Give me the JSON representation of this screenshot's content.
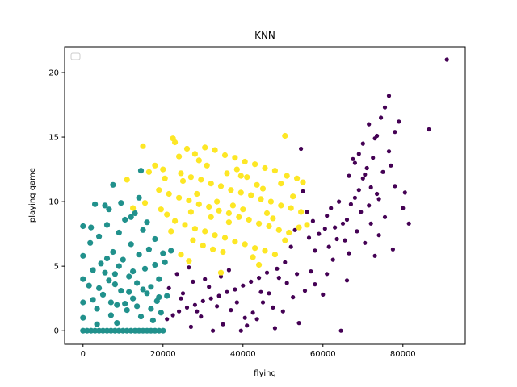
{
  "chart_data": {
    "type": "scatter",
    "title": "KNN",
    "xlabel": "flying",
    "ylabel": "playing game",
    "xlim": [
      -4600,
      95600
    ],
    "ylim": [
      -1.05,
      22.0
    ],
    "xticks": [
      0,
      20000,
      40000,
      60000,
      80000
    ],
    "yticks": [
      0,
      5,
      10,
      15,
      20
    ],
    "grid": false,
    "legend": "top-left (empty)",
    "series": [
      {
        "color": "#440154",
        "points": [
          [
            91000,
            21.0
          ],
          [
            86500,
            15.6
          ],
          [
            76500,
            18.2
          ],
          [
            75500,
            17.3
          ],
          [
            74500,
            16.5
          ],
          [
            79000,
            16.2
          ],
          [
            71500,
            16.0
          ],
          [
            78000,
            15.4
          ],
          [
            73000,
            14.9
          ],
          [
            69000,
            13.7
          ],
          [
            72500,
            13.4
          ],
          [
            67500,
            13.3
          ],
          [
            71000,
            12.6
          ],
          [
            75000,
            12.3
          ],
          [
            66500,
            12.0
          ],
          [
            70000,
            11.8
          ],
          [
            78000,
            11.2
          ],
          [
            73500,
            10.6
          ],
          [
            68000,
            10.3
          ],
          [
            64000,
            10.0
          ],
          [
            71500,
            9.7
          ],
          [
            62000,
            9.5
          ],
          [
            80000,
            9.5
          ],
          [
            69500,
            9.2
          ],
          [
            61000,
            8.9
          ],
          [
            75500,
            8.8
          ],
          [
            66000,
            8.6
          ],
          [
            57500,
            8.5
          ],
          [
            72000,
            8.3
          ],
          [
            81500,
            8.3
          ],
          [
            63000,
            8.0
          ],
          [
            68500,
            7.7
          ],
          [
            59000,
            7.5
          ],
          [
            74000,
            7.4
          ],
          [
            56500,
            7.2
          ],
          [
            65500,
            7.0
          ],
          [
            70500,
            6.8
          ],
          [
            61500,
            6.5
          ],
          [
            77500,
            6.3
          ],
          [
            58000,
            6.2
          ],
          [
            66500,
            6.0
          ],
          [
            73000,
            5.8
          ],
          [
            54500,
            14.1
          ],
          [
            55000,
            10.8
          ],
          [
            56000,
            9.2
          ],
          [
            53000,
            7.8
          ],
          [
            52000,
            6.5
          ],
          [
            50500,
            5.3
          ],
          [
            48500,
            4.8
          ],
          [
            46000,
            4.5
          ],
          [
            44000,
            4.1
          ],
          [
            42000,
            3.8
          ],
          [
            40000,
            3.5
          ],
          [
            38000,
            3.2
          ],
          [
            36000,
            3.0
          ],
          [
            34000,
            2.7
          ],
          [
            32000,
            2.5
          ],
          [
            30000,
            2.3
          ],
          [
            28000,
            2.0
          ],
          [
            26000,
            1.8
          ],
          [
            24000,
            1.5
          ],
          [
            22500,
            1.2
          ],
          [
            21000,
            0.9
          ],
          [
            45000,
            2.2
          ],
          [
            47500,
            1.8
          ],
          [
            50000,
            1.5
          ],
          [
            52500,
            2.6
          ],
          [
            55500,
            3.1
          ],
          [
            58000,
            3.6
          ],
          [
            60000,
            2.8
          ],
          [
            37000,
            1.6
          ],
          [
            39500,
            0.0
          ],
          [
            41000,
            0.4
          ],
          [
            43500,
            0.9
          ],
          [
            35000,
            0.5
          ],
          [
            33500,
            1.9
          ],
          [
            29500,
            1.1
          ],
          [
            27000,
            0.3
          ],
          [
            25000,
            2.9
          ],
          [
            31500,
            3.4
          ],
          [
            44500,
            3.0
          ],
          [
            49000,
            4.1
          ],
          [
            53500,
            4.4
          ],
          [
            57000,
            4.6
          ],
          [
            64500,
            0.0
          ],
          [
            61000,
            4.4
          ],
          [
            66000,
            3.9
          ],
          [
            62500,
            5.5
          ],
          [
            48000,
            0.2
          ],
          [
            40500,
            1.0
          ],
          [
            34500,
            4.2
          ],
          [
            30500,
            4.0
          ],
          [
            27500,
            3.8
          ],
          [
            23500,
            4.4
          ],
          [
            21500,
            3.3
          ],
          [
            24500,
            2.5
          ],
          [
            38500,
            2.2
          ],
          [
            42500,
            1.4
          ],
          [
            46500,
            2.9
          ],
          [
            51000,
            3.7
          ],
          [
            54000,
            0.6
          ],
          [
            36500,
            4.7
          ],
          [
            32500,
            0.0
          ],
          [
            28500,
            1.5
          ],
          [
            26500,
            4.9
          ],
          [
            69000,
            10.9
          ],
          [
            72000,
            11.1
          ],
          [
            67000,
            9.8
          ],
          [
            70500,
            12.1
          ],
          [
            68000,
            13.0
          ],
          [
            74000,
            10.2
          ],
          [
            65000,
            8.3
          ],
          [
            63500,
            7.1
          ],
          [
            60500,
            7.9
          ],
          [
            76500,
            13.9
          ],
          [
            70000,
            14.5
          ],
          [
            73500,
            15.1
          ],
          [
            77000,
            12.8
          ],
          [
            80500,
            10.7
          ]
        ]
      },
      {
        "color": "#21918c",
        "points": [
          [
            0,
            0.0
          ],
          [
            1000,
            0.0
          ],
          [
            2000,
            0.0
          ],
          [
            3000,
            0.0
          ],
          [
            4000,
            0.0
          ],
          [
            5000,
            0.0
          ],
          [
            6000,
            0.0
          ],
          [
            7000,
            0.0
          ],
          [
            8000,
            0.0
          ],
          [
            9000,
            0.0
          ],
          [
            10000,
            0.0
          ],
          [
            11000,
            0.0
          ],
          [
            12000,
            0.0
          ],
          [
            13000,
            0.0
          ],
          [
            14000,
            0.0
          ],
          [
            15000,
            0.0
          ],
          [
            16000,
            0.0
          ],
          [
            17000,
            0.0
          ],
          [
            18000,
            0.0
          ],
          [
            19000,
            0.0
          ],
          [
            20000,
            0.0
          ],
          [
            0,
            8.1
          ],
          [
            0,
            5.8
          ],
          [
            0,
            4.0
          ],
          [
            0,
            2.2
          ],
          [
            0,
            1.0
          ],
          [
            1500,
            3.5
          ],
          [
            1800,
            6.8
          ],
          [
            2500,
            4.7
          ],
          [
            3000,
            9.8
          ],
          [
            3500,
            1.7
          ],
          [
            4000,
            7.3
          ],
          [
            4500,
            5.2
          ],
          [
            5000,
            2.8
          ],
          [
            5500,
            9.7
          ],
          [
            6000,
            8.2
          ],
          [
            6500,
            3.9
          ],
          [
            7000,
            1.2
          ],
          [
            7500,
            6.1
          ],
          [
            8000,
            4.4
          ],
          [
            8500,
            2.0
          ],
          [
            9000,
            7.6
          ],
          [
            9500,
            3.1
          ],
          [
            10000,
            5.5
          ],
          [
            10500,
            8.6
          ],
          [
            11000,
            1.6
          ],
          [
            11500,
            4.2
          ],
          [
            12000,
            6.7
          ],
          [
            12500,
            2.5
          ],
          [
            13000,
            9.1
          ],
          [
            13500,
            3.7
          ],
          [
            14000,
            5.9
          ],
          [
            14500,
            1.1
          ],
          [
            15000,
            7.8
          ],
          [
            15500,
            4.8
          ],
          [
            16000,
            2.9
          ],
          [
            16500,
            6.3
          ],
          [
            17000,
            3.4
          ],
          [
            17500,
            0.8
          ],
          [
            18000,
            5.1
          ],
          [
            18500,
            2.3
          ],
          [
            19000,
            4.0
          ],
          [
            19500,
            1.4
          ],
          [
            20000,
            6.0
          ],
          [
            14500,
            12.4
          ],
          [
            14000,
            10.3
          ],
          [
            7500,
            11.3
          ],
          [
            2000,
            8.0
          ],
          [
            6500,
            9.4
          ],
          [
            9500,
            9.9
          ],
          [
            12000,
            8.8
          ],
          [
            16000,
            8.4
          ],
          [
            18000,
            7.1
          ],
          [
            20500,
            5.3
          ],
          [
            21000,
            2.7
          ],
          [
            22000,
            6.2
          ],
          [
            3500,
            0.5
          ],
          [
            8500,
            0.6
          ],
          [
            11500,
            3.0
          ],
          [
            5500,
            4.5
          ],
          [
            7000,
            2.2
          ],
          [
            4000,
            3.3
          ],
          [
            10500,
            2.1
          ],
          [
            13500,
            1.9
          ],
          [
            9000,
            5.0
          ],
          [
            6000,
            5.6
          ],
          [
            8000,
            3.6
          ],
          [
            12500,
            4.6
          ],
          [
            15000,
            3.2
          ],
          [
            17000,
            1.7
          ],
          [
            19000,
            2.6
          ],
          [
            2500,
            2.4
          ]
        ]
      },
      {
        "color": "#fde725",
        "points": [
          [
            22500,
            14.9
          ],
          [
            23000,
            14.6
          ],
          [
            15000,
            14.3
          ],
          [
            26000,
            14.1
          ],
          [
            28000,
            13.7
          ],
          [
            30500,
            14.2
          ],
          [
            33000,
            14.0
          ],
          [
            35500,
            13.6
          ],
          [
            38000,
            13.4
          ],
          [
            40500,
            13.1
          ],
          [
            43000,
            12.9
          ],
          [
            45500,
            12.6
          ],
          [
            48000,
            12.4
          ],
          [
            50500,
            15.1
          ],
          [
            51000,
            12.0
          ],
          [
            53500,
            11.8
          ],
          [
            55000,
            11.5
          ],
          [
            18000,
            12.8
          ],
          [
            20000,
            12.5
          ],
          [
            24500,
            12.2
          ],
          [
            27000,
            11.9
          ],
          [
            29500,
            11.7
          ],
          [
            32000,
            11.4
          ],
          [
            34500,
            11.2
          ],
          [
            37000,
            10.9
          ],
          [
            39500,
            10.7
          ],
          [
            42000,
            10.5
          ],
          [
            44500,
            10.2
          ],
          [
            47000,
            10.0
          ],
          [
            49500,
            9.7
          ],
          [
            52000,
            9.5
          ],
          [
            54500,
            9.2
          ],
          [
            19000,
            10.9
          ],
          [
            21500,
            10.6
          ],
          [
            24000,
            10.3
          ],
          [
            26500,
            10.1
          ],
          [
            29000,
            9.8
          ],
          [
            31500,
            9.6
          ],
          [
            34000,
            9.3
          ],
          [
            36500,
            9.1
          ],
          [
            39000,
            8.8
          ],
          [
            41500,
            8.6
          ],
          [
            44000,
            8.3
          ],
          [
            46500,
            8.1
          ],
          [
            49000,
            7.8
          ],
          [
            51500,
            7.6
          ],
          [
            54000,
            8.0
          ],
          [
            23000,
            8.5
          ],
          [
            25500,
            8.2
          ],
          [
            28000,
            7.9
          ],
          [
            30500,
            7.7
          ],
          [
            33000,
            7.4
          ],
          [
            35500,
            7.2
          ],
          [
            38000,
            6.9
          ],
          [
            40500,
            6.7
          ],
          [
            43000,
            6.4
          ],
          [
            45500,
            6.2
          ],
          [
            48000,
            5.9
          ],
          [
            50500,
            7.0
          ],
          [
            27500,
            7.0
          ],
          [
            30000,
            6.6
          ],
          [
            32500,
            6.3
          ],
          [
            35000,
            6.1
          ],
          [
            24500,
            5.9
          ],
          [
            26500,
            5.4
          ],
          [
            21000,
            9.0
          ],
          [
            22000,
            7.7
          ],
          [
            20500,
            11.8
          ],
          [
            16500,
            12.3
          ],
          [
            11000,
            11.7
          ],
          [
            12500,
            9.5
          ],
          [
            15500,
            9.9
          ],
          [
            19500,
            9.4
          ],
          [
            36000,
            12.2
          ],
          [
            38500,
            12.5
          ],
          [
            41000,
            11.9
          ],
          [
            43500,
            11.3
          ],
          [
            46000,
            9.1
          ],
          [
            31000,
            12.8
          ],
          [
            28500,
            10.6
          ],
          [
            33500,
            10.0
          ],
          [
            37500,
            9.7
          ],
          [
            40000,
            9.4
          ],
          [
            25000,
            11.6
          ],
          [
            34500,
            4.5
          ],
          [
            42500,
            5.7
          ],
          [
            44000,
            5.1
          ],
          [
            47500,
            8.7
          ],
          [
            52500,
            10.4
          ],
          [
            56000,
            8.2
          ],
          [
            29000,
            13.2
          ],
          [
            39500,
            12.0
          ],
          [
            24000,
            13.5
          ],
          [
            36500,
            8.4
          ],
          [
            32000,
            8.8
          ],
          [
            27000,
            9.2
          ],
          [
            45000,
            11.0
          ],
          [
            49500,
            11.4
          ]
        ]
      }
    ]
  }
}
